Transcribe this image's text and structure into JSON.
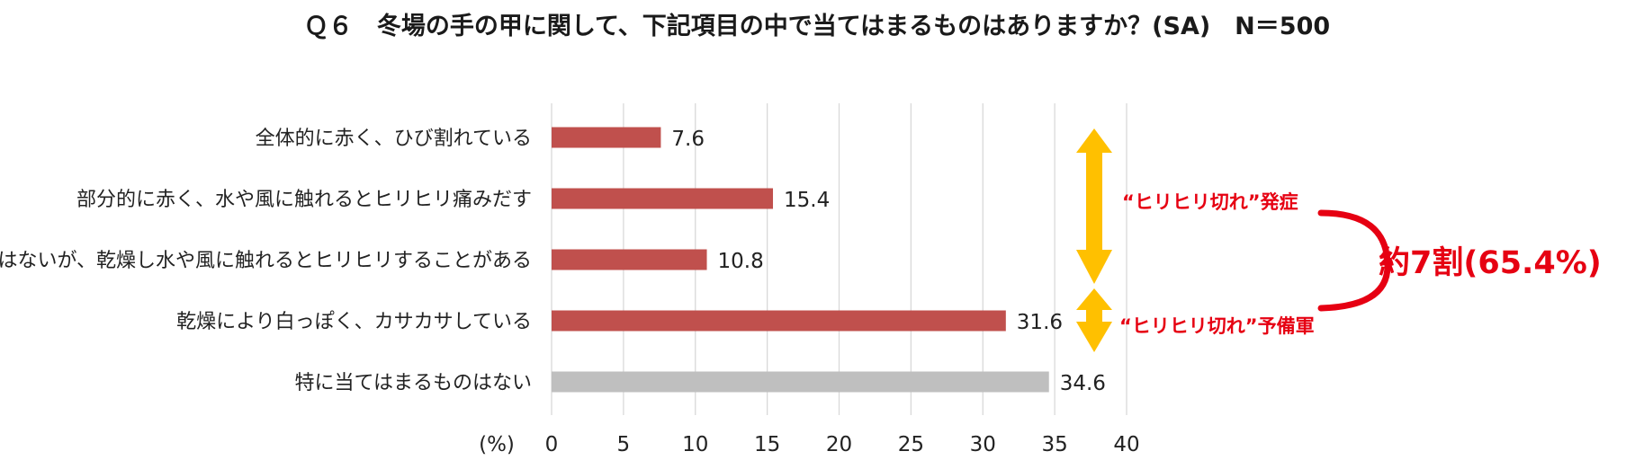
{
  "chart_data": {
    "type": "bar",
    "orientation": "horizontal",
    "title": "Ｑ６　冬場の手の甲に関して、下記項目の中で当てはまるものはありますか？(SA)　N＝500",
    "categories": [
      "全体的に赤く、ひび割れている",
      "部分的に赤く、水や風に触れるとヒリヒリ痛みだす",
      "赤くはないが、乾燥し水や風に触れるとヒリヒリすることがある",
      "乾燥により白っぽく、カサカサしている",
      "特に当てはまるものはない"
    ],
    "values": [
      7.6,
      15.4,
      10.8,
      31.6,
      34.6
    ],
    "value_labels": [
      "7.6",
      "15.4",
      "10.8",
      "31.6",
      "34.6"
    ],
    "bar_colors": [
      "#c0504d",
      "#c0504d",
      "#c0504d",
      "#c0504d",
      "#bfbfbf"
    ],
    "xlim": [
      0,
      40
    ],
    "xticks": [
      0,
      5,
      10,
      15,
      20,
      25,
      30,
      35,
      40
    ],
    "xunit": "(%)",
    "grid": true,
    "annotations": {
      "group1_label": "“ヒリヒリ切れ”発症",
      "group2_label": "“ヒリヒリ切れ”予備軍",
      "total_label": "約7割(65.4%)",
      "arrow_color": "#ffc000",
      "accent_color": "#e60012"
    }
  }
}
